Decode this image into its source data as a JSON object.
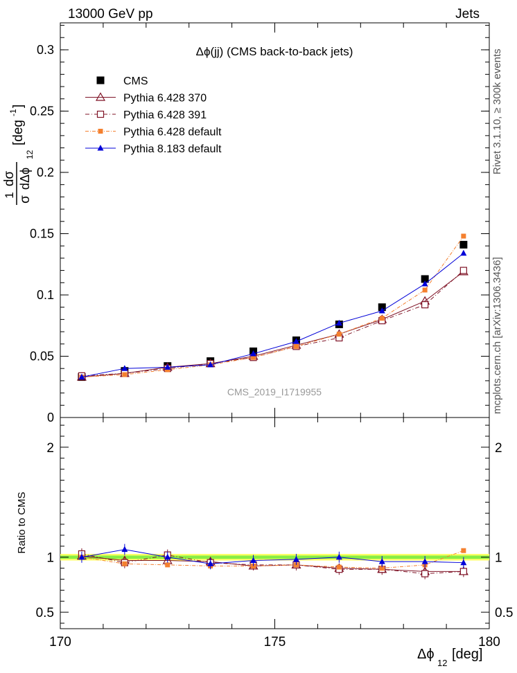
{
  "header": {
    "left": "13000 GeV pp",
    "right": "Jets"
  },
  "side": {
    "rivet": "Rivet 3.1.10, ≥ 300k events",
    "mcplots": "mcplots.cern.ch [arXiv:1306.3436]"
  },
  "chart_data": {
    "type": "line",
    "title": "Δϕ(jj) (CMS back-to-back jets)",
    "watermark": "CMS_2019_I1719955",
    "xlabel": "Δϕ",
    "xlabel_sub": "12",
    "xlabel_unit": "[deg]",
    "ylabel_frac_num": "1",
    "ylabel_frac_num2": "dσ",
    "ylabel_frac_den": "σ",
    "ylabel_frac_den2": "dΔϕ",
    "ylabel_sub": "12",
    "ylabel_unit": "[deg",
    "ylabel_unit_sup": "-1",
    "ylabel_unit_close": "]",
    "ratio_ylabel": "Ratio to CMS",
    "xlim": [
      170,
      180
    ],
    "ylim": [
      0,
      0.322
    ],
    "ratio_ylim": [
      0.35,
      2.27
    ],
    "x_ticks": [
      "170",
      "175",
      "180"
    ],
    "y_ticks": [
      "0",
      "0.05",
      "0.1",
      "0.15",
      "0.2",
      "0.25",
      "0.3"
    ],
    "ratio_ticks": [
      "0.5",
      "1",
      "2"
    ],
    "legend_position": "top-left",
    "x": [
      170.5,
      171.5,
      172.5,
      173.5,
      174.5,
      175.5,
      176.5,
      177.5,
      178.5,
      179.4
    ],
    "series": [
      {
        "name": "CMS",
        "marker": "square-filled",
        "color": "#000000",
        "values": [
          0.033,
          0.038,
          0.042,
          0.046,
          0.054,
          0.063,
          0.076,
          0.09,
          0.113,
          0.141
        ],
        "ratio": [
          1,
          1,
          1,
          1,
          1,
          1,
          1,
          1,
          1,
          1
        ]
      },
      {
        "name": "Pythia 6.428 370",
        "marker": "triangle-open",
        "color": "#7f1326",
        "dash": "",
        "values": [
          0.033,
          0.036,
          0.041,
          0.044,
          0.05,
          0.059,
          0.068,
          0.08,
          0.095,
          0.119
        ],
        "ratio": [
          1.01,
          0.97,
          0.97,
          0.96,
          0.92,
          0.93,
          0.9,
          0.89,
          0.87,
          0.87
        ]
      },
      {
        "name": "Pythia 6.428 391",
        "marker": "square-open",
        "color": "#7f1326",
        "dash": "6,3,1,3",
        "values": [
          0.034,
          0.036,
          0.04,
          0.044,
          0.049,
          0.058,
          0.065,
          0.079,
          0.092,
          0.12
        ],
        "ratio": [
          1.03,
          0.95,
          1.02,
          0.95,
          0.93,
          0.93,
          0.89,
          0.89,
          0.85,
          0.87
        ]
      },
      {
        "name": "Pythia 6.428 default",
        "marker": "square-filled-small",
        "color": "#f4802f",
        "dash": "5,2,1,2",
        "values": [
          0.033,
          0.035,
          0.039,
          0.043,
          0.049,
          0.058,
          0.068,
          0.081,
          0.104,
          0.148
        ],
        "ratio": [
          1.0,
          0.94,
          0.93,
          0.92,
          0.92,
          0.93,
          0.91,
          0.9,
          0.93,
          1.06
        ]
      },
      {
        "name": "Pythia 8.183 default",
        "marker": "triangle-filled",
        "color": "#0000d8",
        "dash": "",
        "values": [
          0.033,
          0.04,
          0.041,
          0.043,
          0.052,
          0.062,
          0.077,
          0.087,
          0.109,
          0.134
        ],
        "ratio": [
          1.0,
          1.07,
          1.0,
          0.94,
          0.97,
          0.98,
          1.0,
          0.96,
          0.96,
          0.95
        ]
      }
    ]
  }
}
